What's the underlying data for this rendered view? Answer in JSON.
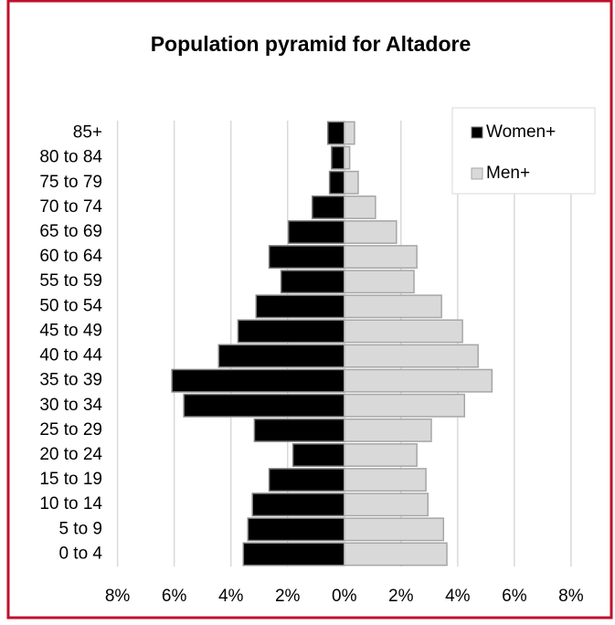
{
  "chart_data": {
    "type": "pyramid",
    "title": "Population pyramid for Altadore",
    "categories": [
      "85+",
      "80 to 84",
      "75 to 79",
      "70 to 74",
      "65 to 69",
      "60 to 64",
      "55 to 59",
      "50 to 54",
      "45 to 49",
      "40 to 44",
      "35 to 39",
      "30 to 34",
      "25 to 29",
      "20 to 24",
      "15 to 19",
      "10 to 14",
      "5 to 9",
      "0 to 4"
    ],
    "series": [
      {
        "name": "Women+",
        "color": "#000000",
        "values": [
          -0.58,
          -0.45,
          -0.52,
          -1.13,
          -1.97,
          -2.65,
          -2.23,
          -3.11,
          -3.75,
          -4.43,
          -6.08,
          -5.66,
          -3.17,
          -1.81,
          -2.65,
          -3.24,
          -3.4,
          -3.56
        ]
      },
      {
        "name": "Men+",
        "color": "#d9d9d9",
        "values": [
          0.36,
          0.19,
          0.49,
          1.1,
          1.84,
          2.56,
          2.46,
          3.43,
          4.17,
          4.72,
          5.21,
          4.24,
          3.07,
          2.56,
          2.88,
          2.95,
          3.5,
          3.62
        ]
      }
    ],
    "xlim": [
      -8.1,
      8.1
    ],
    "xticks": [
      {
        "value": -8,
        "label": "8%"
      },
      {
        "value": -6,
        "label": "6%"
      },
      {
        "value": -4,
        "label": "4%"
      },
      {
        "value": -2,
        "label": "2%"
      },
      {
        "value": 0,
        "label": "0%"
      },
      {
        "value": 2,
        "label": "2%"
      },
      {
        "value": 4,
        "label": "4%"
      },
      {
        "value": 6,
        "label": "6%"
      },
      {
        "value": 8,
        "label": "8%"
      }
    ],
    "grid": true,
    "legend": "top-right"
  }
}
